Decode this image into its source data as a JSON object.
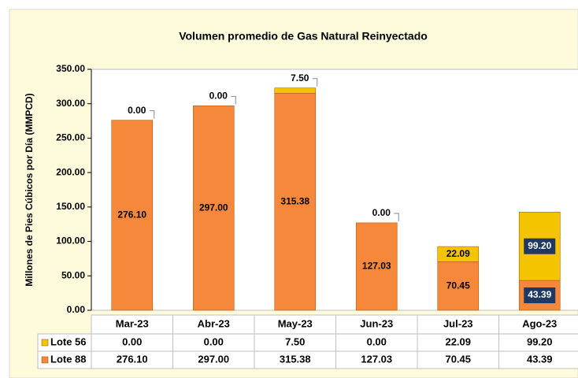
{
  "chart_data": {
    "type": "stacked_bar",
    "title": "Volumen promedio de Gas Natural Reinyectado",
    "y_label": "Millones de Pies Cúbicos por Día (MMPCD)",
    "categories": [
      "Mar-23",
      "Abr-23",
      "May-23",
      "Jun-23",
      "Jul-23",
      "Ago-23"
    ],
    "series": [
      {
        "name": "Lote 88",
        "color": "#f5883a",
        "values": [
          276.1,
          297.0,
          315.38,
          127.03,
          70.45,
          43.39
        ],
        "value_labels": [
          "276.10",
          "297.00",
          "315.38",
          "127.03",
          "70.45",
          "43.39"
        ]
      },
      {
        "name": "Lote 56",
        "color": "#f5c400",
        "values": [
          0.0,
          0.0,
          7.5,
          0.0,
          22.09,
          99.2
        ],
        "value_labels": [
          "0.00",
          "0.00",
          "7.50",
          "0.00",
          "22.09",
          "99.20"
        ]
      }
    ],
    "ylim": [
      0,
      350
    ],
    "yticks": [
      {
        "value": 0,
        "label": "0.00"
      },
      {
        "value": 50,
        "label": "50.00"
      },
      {
        "value": 100,
        "label": "100.00"
      },
      {
        "value": 150,
        "label": "150.00"
      },
      {
        "value": 200,
        "label": "200.00"
      },
      {
        "value": 250,
        "label": "250.00"
      },
      {
        "value": 300,
        "label": "300.00"
      },
      {
        "value": 350,
        "label": "350.00"
      }
    ],
    "grid": false
  }
}
